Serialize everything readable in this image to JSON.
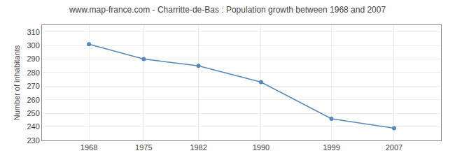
{
  "chart_data": {
    "type": "line",
    "title": "www.map-france.com - Charritte-de-Bas : Population growth between 1968 and 2007",
    "x": [
      1968,
      1975,
      1982,
      1990,
      1999,
      2007
    ],
    "values": [
      301,
      290,
      285,
      273,
      246,
      239
    ],
    "ylabel": "Number of inhabitants",
    "xlim": [
      1962,
      2013
    ],
    "xticks": [
      1968,
      1975,
      1982,
      1990,
      1999,
      2007
    ],
    "ylim": [
      230,
      315
    ],
    "yticks": [
      230,
      240,
      250,
      260,
      270,
      280,
      290,
      300,
      310
    ],
    "color": "#5588bb",
    "marker": "circle",
    "grid": true
  }
}
